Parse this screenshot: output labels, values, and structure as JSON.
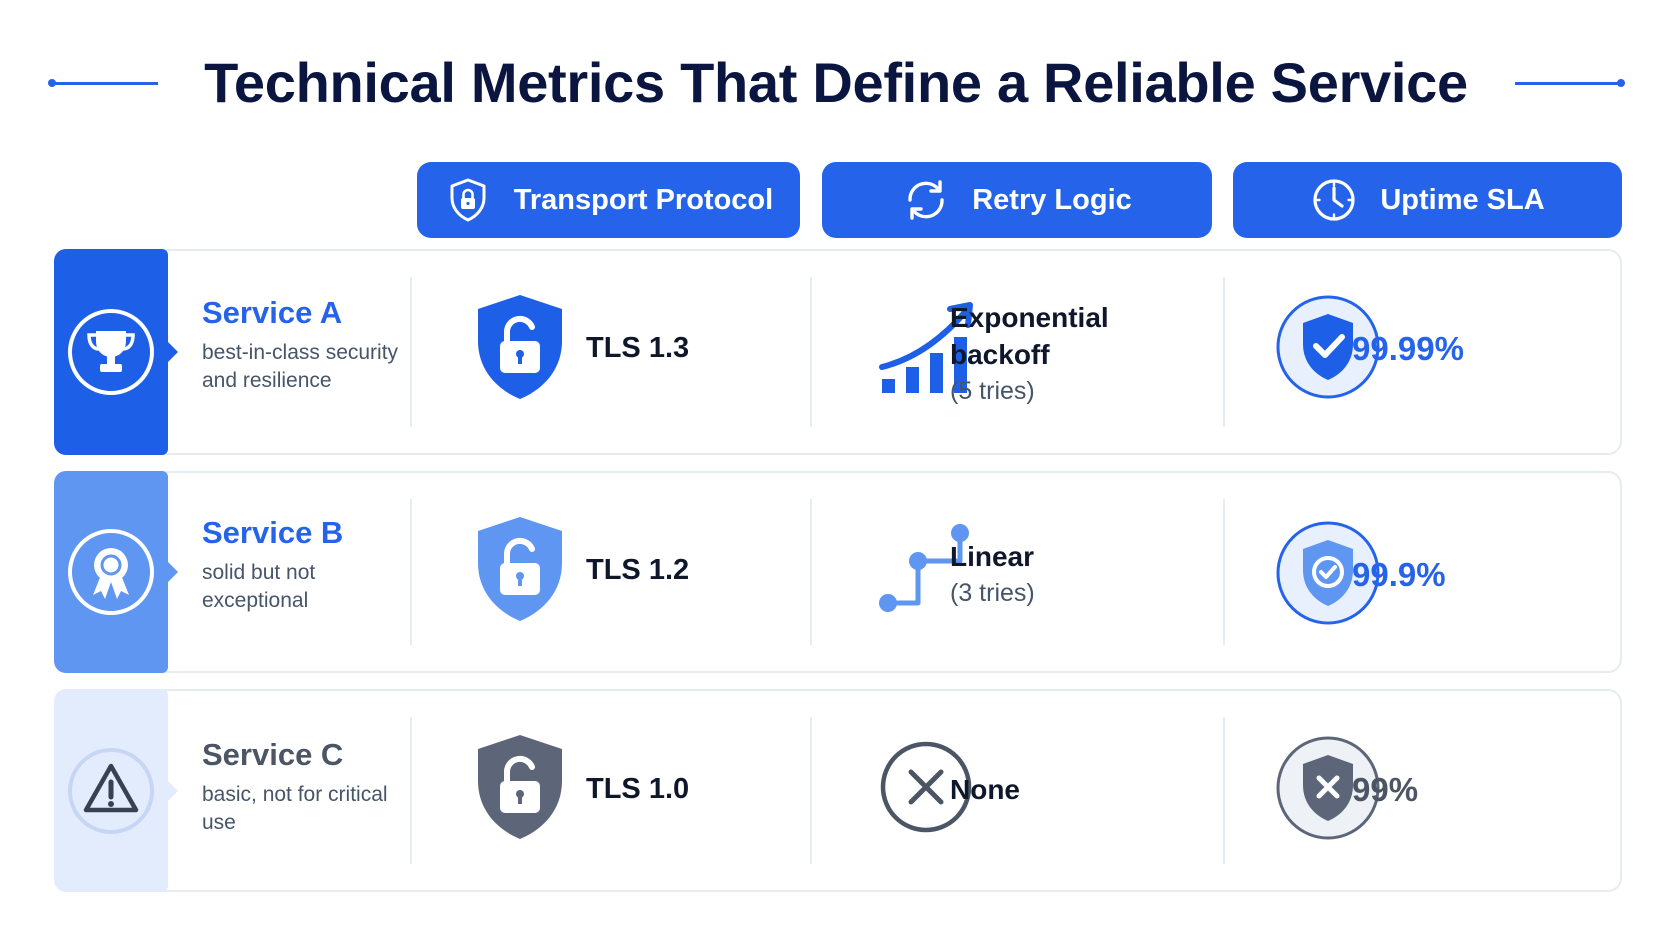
{
  "title": "Technical Metrics That Define a Reliable Service",
  "columns": [
    {
      "label": "Transport Protocol",
      "icon": "shield-lock-icon"
    },
    {
      "label": "Retry Logic",
      "icon": "refresh-icon"
    },
    {
      "label": "Uptime SLA",
      "icon": "clock-icon"
    }
  ],
  "rows": [
    {
      "name": "Service A",
      "description": "best-in-class security and resilience",
      "badge_icon": "trophy-icon",
      "protocol": "TLS 1.3",
      "retry": "Exponential backoff",
      "retry_detail": "(5 tries)",
      "retry_icon": "growth-chart-icon",
      "uptime": "99.99%",
      "uptime_icon": "shield-check-icon"
    },
    {
      "name": "Service B",
      "description": "solid but not exceptional",
      "badge_icon": "award-ribbon-icon",
      "protocol": "TLS 1.2",
      "retry": "Linear",
      "retry_detail": "(3 tries)",
      "retry_icon": "step-line-icon",
      "uptime": "99.9%",
      "uptime_icon": "shield-check-icon"
    },
    {
      "name": "Service C",
      "description": "basic, not for critical use",
      "badge_icon": "warning-icon",
      "protocol": "TLS 1.0",
      "retry": "None",
      "retry_detail": "",
      "retry_icon": "x-circle-icon",
      "uptime": "99%",
      "uptime_icon": "shield-x-icon"
    }
  ],
  "colors": {
    "primary": "#2563eb",
    "service_b": "#5f96f2",
    "service_c_badge": "#e3ecfd",
    "muted": "#4b5563"
  }
}
